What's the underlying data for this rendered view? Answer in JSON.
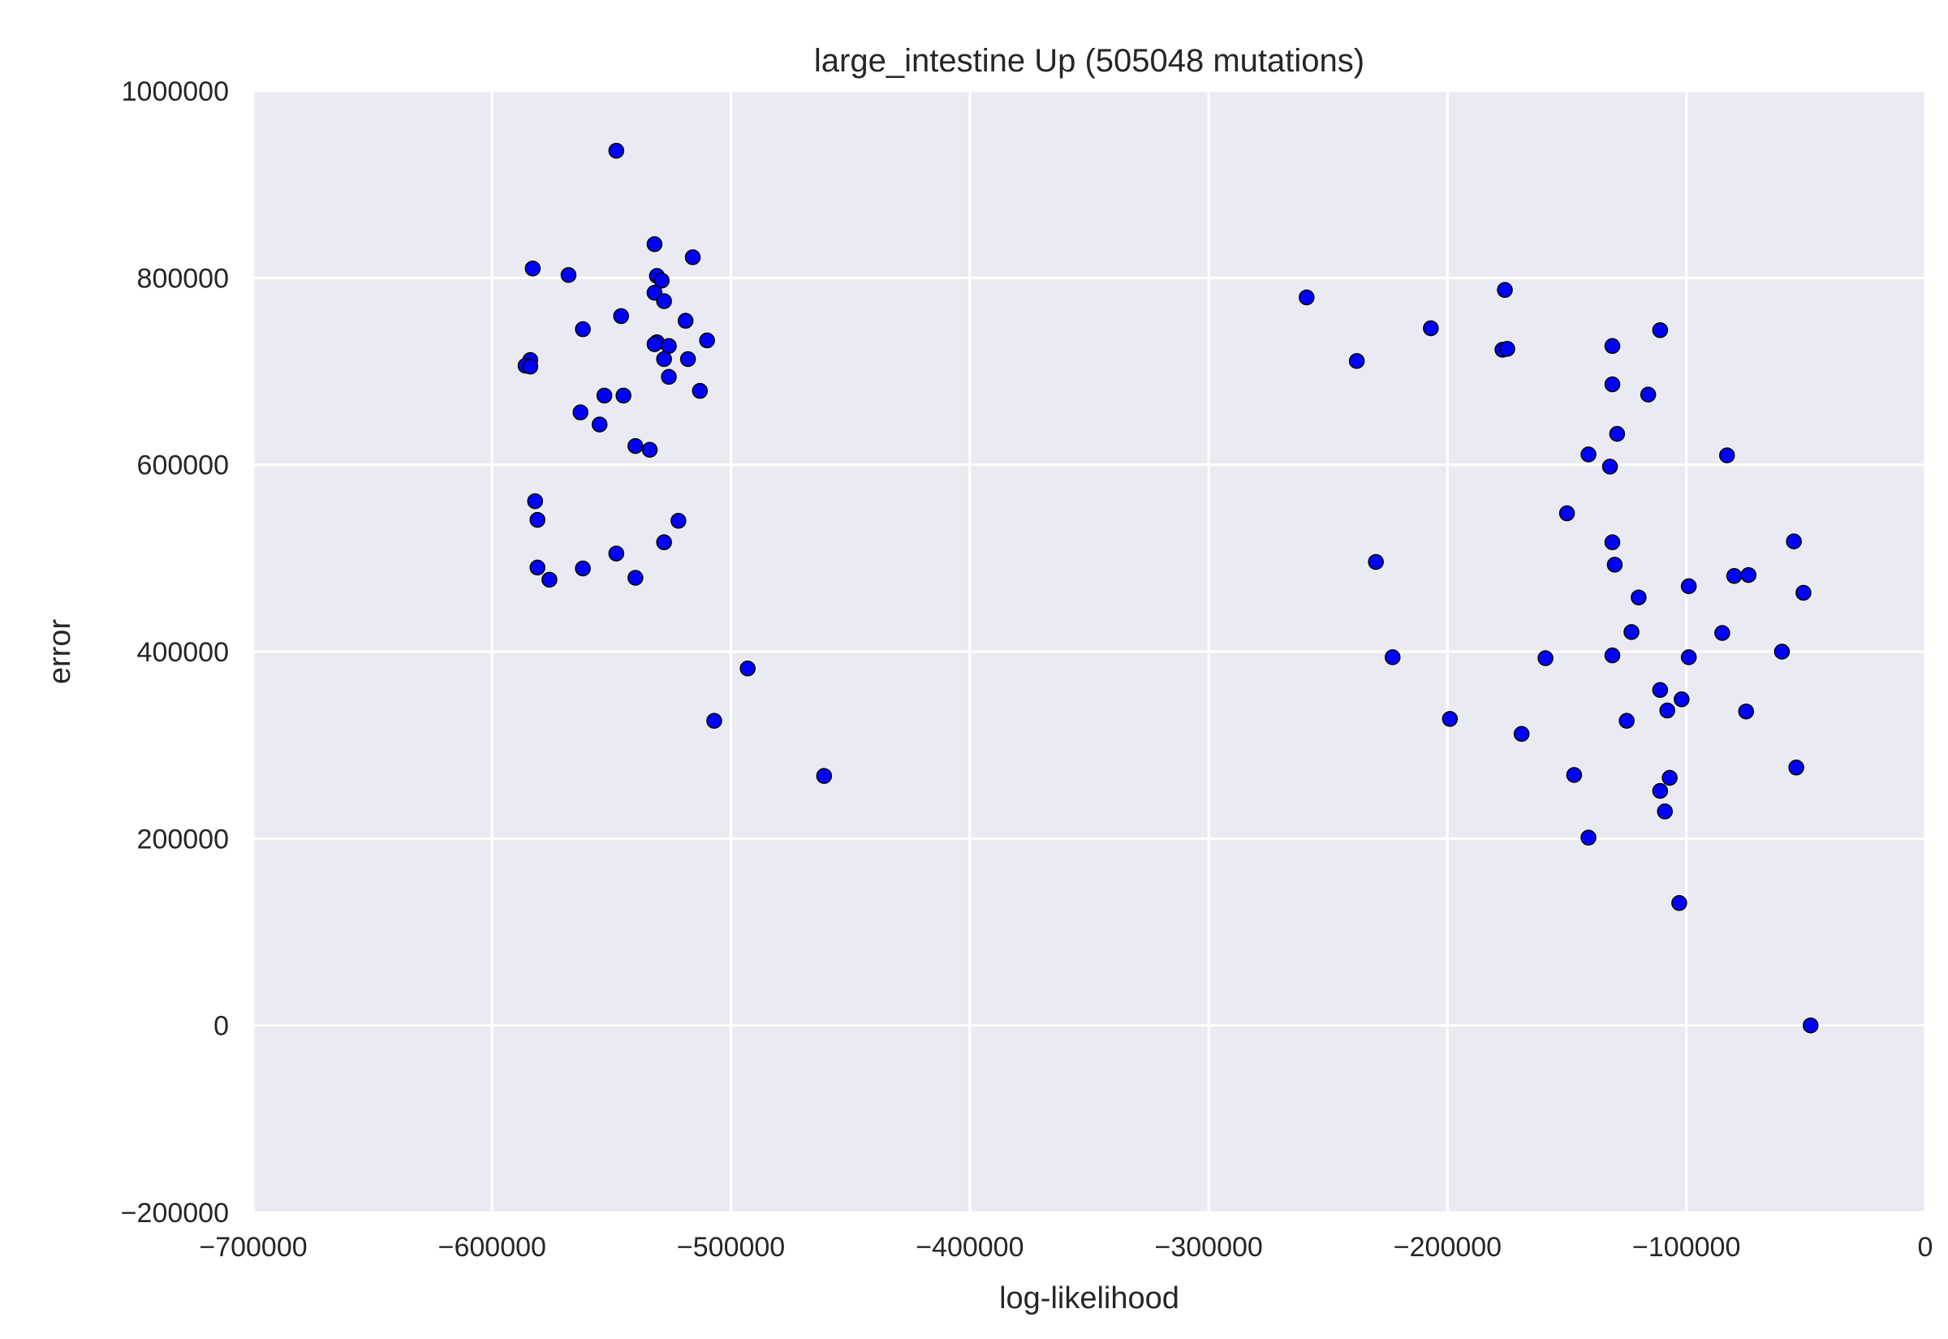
{
  "chart_data": {
    "type": "scatter",
    "title": "large_intestine Up (505048 mutations)",
    "xlabel": "log-likelihood",
    "ylabel": "error",
    "xlim": [
      -700000,
      0
    ],
    "ylim": [
      -200000,
      1000000
    ],
    "xticks": [
      -700000,
      -600000,
      -500000,
      -400000,
      -300000,
      -200000,
      -100000,
      0
    ],
    "xtick_labels": [
      "−700000",
      "−600000",
      "−500000",
      "−400000",
      "−300000",
      "−200000",
      "−100000",
      "0"
    ],
    "yticks": [
      -200000,
      0,
      200000,
      400000,
      600000,
      800000,
      1000000
    ],
    "ytick_labels": [
      "−200000",
      "0",
      "200000",
      "400000",
      "600000",
      "800000",
      "1000000"
    ],
    "grid": true,
    "colors": {
      "background": "#eaeaf2",
      "grid": "#ffffff",
      "point": "#0000ff",
      "point_edge": "#000000"
    },
    "x": [
      -548000,
      -532000,
      -516000,
      -531000,
      -529000,
      -532000,
      -583000,
      -568000,
      -546000,
      -519000,
      -528000,
      -562000,
      -531000,
      -526000,
      -510000,
      -532000,
      -518000,
      -528000,
      -584000,
      -586000,
      -584000,
      -526000,
      -553000,
      -545000,
      -513000,
      -563000,
      -555000,
      -540000,
      -534000,
      -582000,
      -581000,
      -522000,
      -528000,
      -548000,
      -581000,
      -562000,
      -576000,
      -540000,
      -493000,
      -507000,
      -461000,
      -259000,
      -238000,
      -207000,
      -176000,
      -177000,
      -175000,
      -111000,
      -131000,
      -131000,
      -116000,
      -129000,
      -83000,
      -141000,
      -132000,
      -150000,
      -131000,
      -55000,
      -230000,
      -130000,
      -99000,
      -80000,
      -74000,
      -51000,
      -120000,
      -123000,
      -85000,
      -60000,
      -223000,
      -159000,
      -131000,
      -99000,
      -111000,
      -102000,
      -108000,
      -75000,
      -199000,
      -125000,
      -169000,
      -54000,
      -147000,
      -107000,
      -111000,
      -109000,
      -141000,
      -103000,
      -48000
    ],
    "y": [
      936000,
      836000,
      822000,
      802000,
      797000,
      784000,
      810000,
      803000,
      759000,
      754000,
      775000,
      745000,
      731000,
      727000,
      733000,
      729000,
      713000,
      713000,
      712000,
      706000,
      705000,
      694000,
      674000,
      674000,
      679000,
      656000,
      643000,
      620000,
      616000,
      561000,
      541000,
      540000,
      517000,
      505000,
      490000,
      489000,
      477000,
      479000,
      382000,
      326000,
      267000,
      779000,
      711000,
      746000,
      787000,
      723000,
      724000,
      744000,
      727000,
      686000,
      675000,
      633000,
      610000,
      611000,
      598000,
      548000,
      517000,
      518000,
      496000,
      493000,
      470000,
      481000,
      482000,
      463000,
      458000,
      421000,
      420000,
      400000,
      394000,
      393000,
      396000,
      394000,
      359000,
      349000,
      337000,
      336000,
      328000,
      326000,
      312000,
      276000,
      268000,
      265000,
      251000,
      229000,
      201000,
      131000,
      0
    ]
  }
}
